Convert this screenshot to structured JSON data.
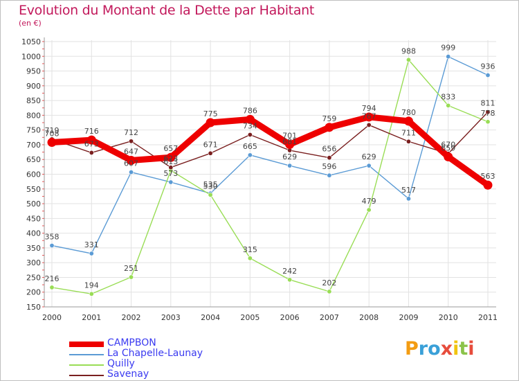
{
  "title": "Evolution du Montant de la Dette par Habitant",
  "subtitle": "(en €)",
  "logo": {
    "letters": [
      "P",
      "r",
      "o",
      "x",
      "i",
      "t",
      "i"
    ],
    "colors": [
      "#f39c12",
      "#3aa0d8",
      "#3aa0d8",
      "#e74c3c",
      "#f1c40f",
      "#8bc34a",
      "#e74c3c"
    ]
  },
  "chart_data": {
    "type": "line",
    "title": "Evolution du Montant de la Dette par Habitant",
    "ylabel": "(en €)",
    "x": [
      "2000",
      "2001",
      "2002",
      "2003",
      "2004",
      "2005",
      "2006",
      "2007",
      "2008",
      "2009",
      "2010",
      "2011"
    ],
    "yticks": [
      150,
      200,
      250,
      300,
      350,
      400,
      450,
      500,
      550,
      600,
      650,
      700,
      750,
      800,
      850,
      900,
      950,
      1000,
      1050
    ],
    "ylim": [
      150,
      1050
    ],
    "grid": true,
    "legend_position": "bottom-left",
    "series": [
      {
        "name": "CAMPBON",
        "color": "#ee0000",
        "values": [
          708,
          716,
          647,
          657,
          775,
          786,
          701,
          759,
          794,
          780,
          659,
          563
        ]
      },
      {
        "name": "La Chapelle-Launay",
        "color": "#5b9bd5",
        "values": [
          358,
          331,
          607,
          573,
          535,
          665,
          629,
          596,
          629,
          517,
          999,
          936
        ]
      },
      {
        "name": "Quilly",
        "color": "#99dd55",
        "values": [
          216,
          194,
          251,
          613,
          530,
          315,
          242,
          202,
          479,
          988,
          833,
          778
        ]
      },
      {
        "name": "Savenay",
        "color": "#7a1f1f",
        "values": [
          719,
          673,
          712,
          623,
          671,
          734,
          681,
          656,
          767,
          711,
          670,
          811
        ]
      }
    ]
  }
}
